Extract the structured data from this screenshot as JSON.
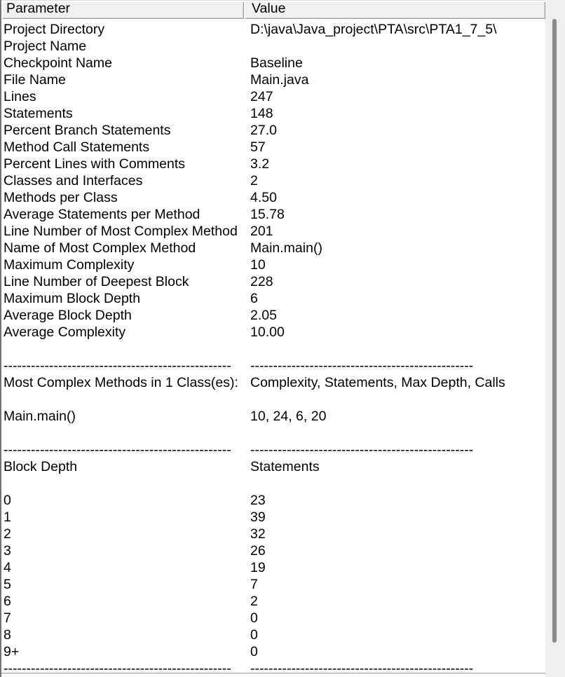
{
  "table": {
    "columns": [
      "Parameter",
      "Value"
    ],
    "rows": [
      {
        "p": "Project Directory",
        "v": "D:\\java\\Java_project\\PTA\\src\\PTA1_7_5\\"
      },
      {
        "p": "Project Name",
        "v": ""
      },
      {
        "p": "Checkpoint Name",
        "v": "Baseline"
      },
      {
        "p": "File Name",
        "v": "Main.java"
      },
      {
        "p": "Lines",
        "v": "247"
      },
      {
        "p": "Statements",
        "v": "148"
      },
      {
        "p": "Percent Branch Statements",
        "v": "27.0"
      },
      {
        "p": "Method Call Statements",
        "v": "57"
      },
      {
        "p": "Percent Lines with Comments",
        "v": "3.2"
      },
      {
        "p": "Classes and Interfaces",
        "v": "2"
      },
      {
        "p": "Methods per Class",
        "v": "4.50"
      },
      {
        "p": "Average Statements per Method",
        "v": "15.78"
      },
      {
        "p": "Line Number of Most Complex Method",
        "v": "201"
      },
      {
        "p": "Name of Most Complex Method",
        "v": "Main.main()"
      },
      {
        "p": "Maximum Complexity",
        "v": "10"
      },
      {
        "p": "Line Number of Deepest Block",
        "v": "228"
      },
      {
        "p": "Maximum Block Depth",
        "v": "6"
      },
      {
        "p": "Average Block Depth",
        "v": "2.05"
      },
      {
        "p": "Average Complexity",
        "v": "10.00"
      },
      {
        "p": "",
        "v": ""
      },
      {
        "p": "--------------------------------------------------",
        "v": "-------------------------------------------------"
      },
      {
        "p": "Most Complex Methods in 1 Class(es):",
        "v": "Complexity, Statements, Max Depth, Calls"
      },
      {
        "p": "",
        "v": ""
      },
      {
        "p": "Main.main()",
        "v": "10, 24, 6, 20"
      },
      {
        "p": "",
        "v": ""
      },
      {
        "p": "--------------------------------------------------",
        "v": "-------------------------------------------------"
      },
      {
        "p": "Block Depth",
        "v": "Statements"
      },
      {
        "p": "",
        "v": ""
      },
      {
        "p": "0",
        "v": "23"
      },
      {
        "p": "1",
        "v": "39"
      },
      {
        "p": "2",
        "v": "32"
      },
      {
        "p": "3",
        "v": "26"
      },
      {
        "p": "4",
        "v": "19"
      },
      {
        "p": "5",
        "v": "7"
      },
      {
        "p": "6",
        "v": "2"
      },
      {
        "p": "7",
        "v": "0"
      },
      {
        "p": "8",
        "v": "0"
      },
      {
        "p": "9+",
        "v": "0"
      },
      {
        "p": "--------------------------------------------------",
        "v": "-------------------------------------------------"
      }
    ]
  },
  "colors": {
    "header_bg": "#f0f0f0",
    "header_highlight": "#ffffff",
    "header_shadow": "#9d9d9d",
    "panel_border": "#747474",
    "bottom_border": "#9a9a9a",
    "scrollbar_track": "#efefef",
    "scrollbar_thumb": "#8a8a8a",
    "text": "#000000",
    "background": "#ffffff"
  }
}
